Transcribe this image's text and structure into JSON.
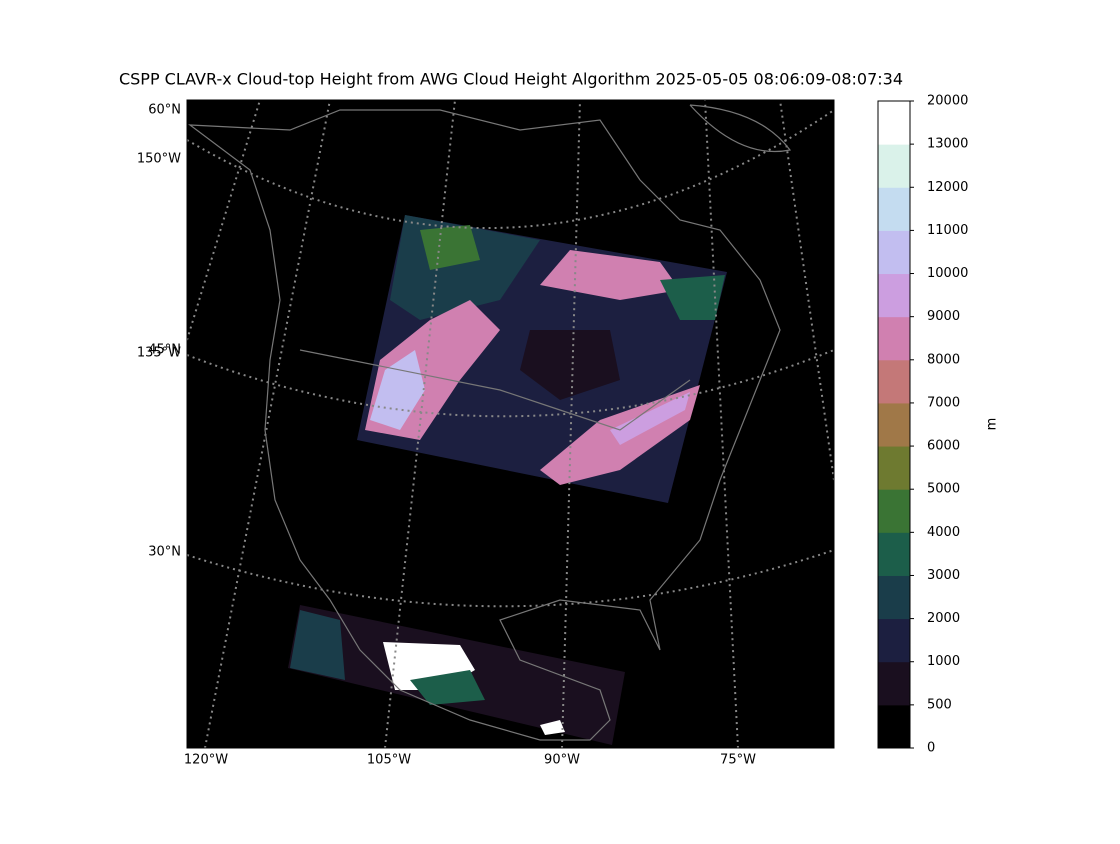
{
  "map": {
    "title": "CSPP CLAVR-x Cloud-top Height from AWG Cloud Height Algorithm 2025-05-05 08:06:09-08:07:34",
    "left_labels": [
      "60°N",
      "150°W",
      "45°N",
      "135°W",
      "30°N"
    ],
    "bottom_labels": [
      "120°W",
      "105°W",
      "90°W",
      "75°W"
    ]
  },
  "colorbar": {
    "label": "m",
    "ticks": [
      0,
      500,
      1000,
      2000,
      3000,
      4000,
      5000,
      6000,
      7000,
      8000,
      9000,
      10000,
      11000,
      12000,
      13000,
      20000
    ],
    "colors": [
      "#000000",
      "#1a0f1f",
      "#1c1f40",
      "#1a3d4a",
      "#1c5e4a",
      "#3a7434",
      "#6e7a30",
      "#a07848",
      "#c47878",
      "#d080b0",
      "#cc9ee0",
      "#c2bef0",
      "#c4dcf0",
      "#daf2ea",
      "#ffffff"
    ]
  }
}
